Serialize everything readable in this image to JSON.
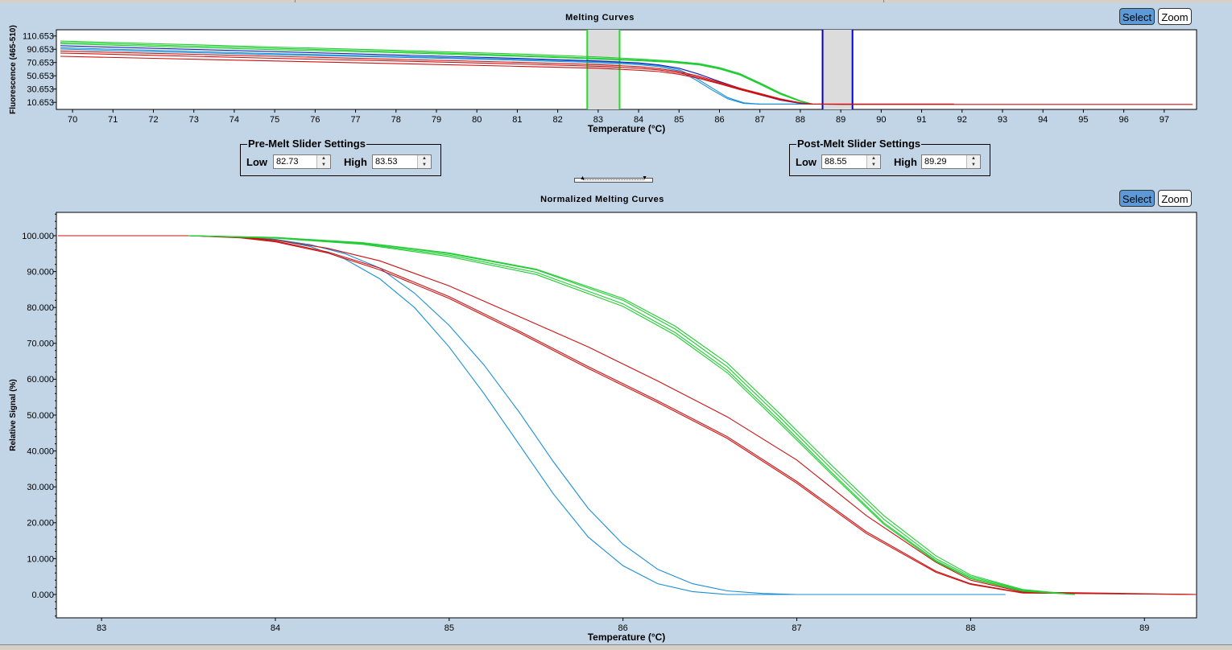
{
  "window": {
    "title": "Melting Curves"
  },
  "colors": {
    "green": "#22cc33",
    "red": "#cc1111",
    "blue": "#1a8fd6",
    "dark_blue": "#1a1ab8",
    "slider_green": "#22dd22",
    "slider_blue": "#0000cc",
    "select_button": "#5b9ad6",
    "background": "#c2d5e7"
  },
  "top_panel": {
    "title": "Melting Curves",
    "select_label": "Select",
    "zoom_label": "Zoom"
  },
  "pre_melt": {
    "legend": "Pre-Melt Slider Settings",
    "low_label": "Low",
    "low_value": "82.73",
    "high_label": "High",
    "high_value": "83.53"
  },
  "post_melt": {
    "legend": "Post-Melt Slider Settings",
    "low_label": "Low",
    "low_value": "88.55",
    "high_label": "High",
    "high_value": "89.29"
  },
  "bottom_panel": {
    "title": "Normalized Melting Curves",
    "select_label": "Select",
    "zoom_label": "Zoom"
  },
  "chart_data": [
    {
      "type": "line",
      "title": "Melting Curves",
      "xlabel": "Temperature (°C)",
      "ylabel": "Fluorescence (465-510)",
      "xlim": [
        69.6,
        97.8
      ],
      "ylim": [
        0,
        120
      ],
      "x_ticks": [
        70,
        71,
        72,
        73,
        74,
        75,
        76,
        77,
        78,
        79,
        80,
        81,
        82,
        83,
        84,
        85,
        86,
        87,
        88,
        89,
        90,
        91,
        92,
        93,
        94,
        95,
        96,
        97
      ],
      "y_ticks": [
        10.653,
        30.653,
        50.653,
        70.653,
        90.653,
        110.653
      ],
      "y_tick_labels": [
        "10.653",
        "30.653",
        "50.653",
        "70.653",
        "90.653",
        "110.653"
      ],
      "pre_melt_region": [
        82.73,
        83.53
      ],
      "post_melt_region": [
        88.55,
        89.29
      ],
      "series": [
        {
          "color": "green",
          "x": [
            69.7,
            72,
            75,
            78,
            81,
            83,
            84,
            84.8,
            85.5,
            86,
            86.5,
            87,
            87.5,
            88,
            88.3
          ],
          "y": [
            103,
            99,
            94,
            89,
            83.5,
            79,
            76,
            73,
            69,
            63,
            54,
            40,
            25,
            13,
            8
          ]
        },
        {
          "color": "green",
          "x": [
            69.7,
            72,
            75,
            78,
            81,
            83,
            84,
            84.8,
            85.5,
            86,
            86.5,
            87,
            87.5,
            88,
            88.3
          ],
          "y": [
            101,
            97,
            92,
            87,
            81.5,
            77,
            74.5,
            72,
            68,
            62,
            53,
            39,
            24,
            13,
            8
          ]
        },
        {
          "color": "green",
          "x": [
            69.7,
            72,
            75,
            78,
            81,
            83,
            84,
            84.8,
            85.5,
            86,
            86.5,
            87,
            87.5,
            88,
            88.3
          ],
          "y": [
            99,
            95,
            90,
            85.5,
            80,
            76,
            73.5,
            71,
            67,
            61,
            52,
            38,
            23,
            12,
            8
          ]
        },
        {
          "color": "blue",
          "x": [
            69.7,
            72,
            75,
            78,
            81,
            83,
            84,
            84.5,
            85,
            85.4,
            85.8,
            86.2,
            86.6,
            87,
            88,
            88.3
          ],
          "y": [
            93,
            89,
            84,
            80,
            75.5,
            72,
            69,
            66,
            60,
            48,
            33,
            18,
            10,
            8,
            8,
            8
          ]
        },
        {
          "color": "blue",
          "x": [
            69.7,
            72,
            75,
            78,
            81,
            83,
            84,
            84.5,
            85,
            85.4,
            85.8,
            86.2,
            86.6,
            87,
            88,
            88.3
          ],
          "y": [
            91,
            87,
            82.5,
            78.5,
            74,
            70.5,
            67.5,
            64.5,
            58,
            45,
            30,
            16,
            9,
            8,
            8,
            8
          ]
        },
        {
          "color": "dark_blue",
          "x": [
            69.7,
            72,
            75,
            78,
            81,
            83,
            84,
            84.5,
            85,
            85.5,
            86,
            86.5,
            87,
            87.5,
            88,
            88.3
          ],
          "y": [
            96,
            92,
            87,
            82,
            77,
            73,
            70,
            67,
            62,
            53,
            42,
            32,
            22,
            14,
            9,
            8
          ]
        },
        {
          "color": "red",
          "x": [
            69.7,
            72,
            75,
            78,
            81,
            83,
            84,
            84.5,
            85,
            85.5,
            86,
            86.5,
            87,
            87.5,
            88,
            88.3,
            89,
            91.8
          ],
          "y": [
            88,
            84.5,
            80,
            75.5,
            71,
            67.5,
            64.5,
            61.5,
            57,
            50,
            41,
            32,
            24,
            16,
            10,
            8,
            8,
            8
          ]
        },
        {
          "color": "red",
          "x": [
            69.7,
            72,
            75,
            78,
            81,
            83,
            84,
            84.5,
            85,
            85.5,
            86,
            86.5,
            87,
            87.5,
            88,
            88.3,
            89,
            91.8
          ],
          "y": [
            85,
            81.5,
            77,
            73,
            68.5,
            65,
            62,
            59.5,
            55,
            48,
            39.5,
            31,
            23,
            15,
            10,
            8,
            8,
            8
          ]
        },
        {
          "color": "red",
          "x": [
            69.7,
            72,
            75,
            78,
            81,
            83,
            84,
            84.5,
            85,
            85.5,
            86,
            86.5,
            87,
            87.5,
            88,
            88.3,
            89,
            91.8,
            97.7
          ],
          "y": [
            80,
            77,
            73,
            69,
            65,
            62,
            59,
            57,
            53,
            46.5,
            38.5,
            30,
            22,
            14.5,
            9.5,
            8,
            7.5,
            7.5,
            7.5
          ]
        }
      ]
    },
    {
      "type": "line",
      "title": "Normalized Melting Curves",
      "xlabel": "Temperature (°C)",
      "ylabel": "Relative Signal (%)",
      "xlim": [
        82.74,
        89.3
      ],
      "ylim": [
        -6.5,
        106.5
      ],
      "x_ticks": [
        83,
        84,
        85,
        86,
        87,
        88,
        89
      ],
      "y_ticks": [
        0,
        10,
        20,
        30,
        40,
        50,
        60,
        70,
        80,
        90,
        100
      ],
      "y_tick_labels": [
        "0.000",
        "10.000",
        "20.000",
        "30.000",
        "40.000",
        "50.000",
        "60.000",
        "70.000",
        "80.000",
        "90.000",
        "100.000"
      ],
      "series": [
        {
          "color": "blue",
          "x": [
            83.5,
            83.8,
            84.0,
            84.2,
            84.4,
            84.6,
            84.8,
            85.0,
            85.2,
            85.4,
            85.6,
            85.8,
            86.0,
            86.2,
            86.4,
            86.6,
            86.8,
            87.0,
            87.5,
            88.2
          ],
          "y": [
            100,
            99.6,
            98.8,
            97,
            93.5,
            88,
            80,
            69,
            56,
            42,
            28,
            16,
            8,
            3,
            0.8,
            0,
            0,
            0,
            0,
            0
          ]
        },
        {
          "color": "blue",
          "x": [
            83.5,
            83.8,
            84.0,
            84.2,
            84.4,
            84.6,
            84.8,
            85.0,
            85.2,
            85.4,
            85.6,
            85.8,
            86.0,
            86.2,
            86.4,
            86.6,
            86.8,
            87.0,
            87.5,
            88.2
          ],
          "y": [
            100,
            99.7,
            99,
            97.5,
            95,
            91,
            84,
            75,
            64,
            51,
            37,
            24,
            14,
            7,
            3,
            1,
            0.3,
            0,
            0,
            0
          ]
        },
        {
          "color": "red",
          "x": [
            82.75,
            83.5,
            83.8,
            84.0,
            84.3,
            84.6,
            85.0,
            85.4,
            85.8,
            86.2,
            86.6,
            87.0,
            87.4,
            87.8,
            88.0,
            88.3,
            89.3
          ],
          "y": [
            100,
            100,
            99.5,
            98.5,
            95.5,
            91,
            83,
            73.5,
            63.5,
            54,
            44,
            31.5,
            17.5,
            6.5,
            3,
            0.5,
            0
          ]
        },
        {
          "color": "red",
          "x": [
            82.75,
            83.5,
            83.8,
            84.0,
            84.3,
            84.6,
            85.0,
            85.4,
            85.8,
            86.2,
            86.6,
            87.0,
            87.4,
            87.8,
            88.0,
            88.3,
            89.3
          ],
          "y": [
            100,
            100,
            99.4,
            98.3,
            95.2,
            90.5,
            82.5,
            73,
            63,
            53.5,
            43.5,
            31,
            17,
            6.2,
            2.8,
            0.4,
            0
          ]
        },
        {
          "color": "red",
          "x": [
            82.75,
            83.5,
            83.8,
            84.0,
            84.3,
            84.6,
            85.0,
            85.4,
            85.8,
            86.2,
            86.6,
            87.0,
            87.4,
            87.8,
            88.0,
            88.3,
            89.3
          ],
          "y": [
            100,
            100,
            99.6,
            98.8,
            96.5,
            93,
            86,
            77.5,
            69,
            59.5,
            49.5,
            37.5,
            22,
            9,
            4,
            0.7,
            0
          ]
        },
        {
          "color": "green",
          "x": [
            83.5,
            84.0,
            84.5,
            85.0,
            85.5,
            86.0,
            86.3,
            86.6,
            86.9,
            87.2,
            87.5,
            87.8,
            88.0,
            88.3,
            88.6
          ],
          "y": [
            100,
            99.5,
            98,
            95,
            90.5,
            82,
            74,
            63.5,
            49.5,
            35,
            21,
            10,
            5,
            1.2,
            0
          ]
        },
        {
          "color": "green",
          "x": [
            83.5,
            84.0,
            84.5,
            85.0,
            85.5,
            86.0,
            86.3,
            86.6,
            86.9,
            87.2,
            87.5,
            87.8,
            88.0,
            88.3,
            88.6
          ],
          "y": [
            100,
            99.4,
            97.8,
            94.6,
            89.8,
            81,
            73,
            62.5,
            48.5,
            34,
            20,
            9.5,
            4.6,
            1,
            0
          ]
        },
        {
          "color": "green",
          "x": [
            83.5,
            84.0,
            84.5,
            85.0,
            85.5,
            86.0,
            86.3,
            86.6,
            86.9,
            87.2,
            87.5,
            87.8,
            88.0,
            88.3,
            88.6
          ],
          "y": [
            100,
            99.5,
            98.1,
            95.2,
            90.7,
            82.5,
            74.8,
            64.5,
            50.5,
            36,
            22,
            10.8,
            5.4,
            1.4,
            0
          ]
        },
        {
          "color": "green",
          "x": [
            83.5,
            84.0,
            84.5,
            85.0,
            85.5,
            86.0,
            86.3,
            86.6,
            86.9,
            87.2,
            87.5,
            87.8,
            88.0,
            88.3,
            88.6
          ],
          "y": [
            100,
            99.3,
            97.6,
            94.2,
            89.2,
            80.3,
            72.3,
            61.8,
            47.8,
            33.5,
            19.6,
            9.2,
            4.4,
            0.9,
            0
          ]
        }
      ]
    }
  ]
}
